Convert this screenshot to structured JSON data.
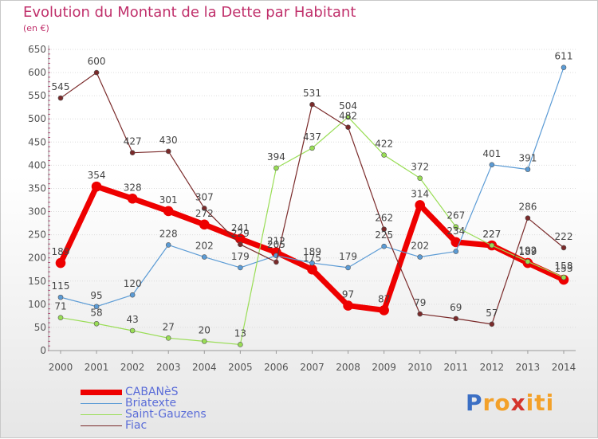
{
  "title": "Evolution du Montant de la Dette par Habitant",
  "subtitle": "(en €)",
  "logo": {
    "letters": [
      "P",
      "r",
      "o",
      "x",
      "i",
      "t",
      "i"
    ],
    "colors": [
      "#3b6fc4",
      "#f3a12a",
      "#f3a12a",
      "#d4342c",
      "#f3a12a",
      "#f3a12a",
      "#f3a12a"
    ]
  },
  "chart_data": {
    "type": "line",
    "x": [
      2000,
      2001,
      2002,
      2003,
      2004,
      2005,
      2006,
      2007,
      2008,
      2009,
      2010,
      2011,
      2012,
      2013,
      2014
    ],
    "ylim": [
      0,
      650
    ],
    "yticks": [
      0,
      50,
      100,
      150,
      200,
      250,
      300,
      350,
      400,
      450,
      500,
      550,
      600,
      650
    ],
    "grid": true,
    "legend": "bottom-left",
    "series": [
      {
        "name": "CABANèS",
        "color": "#ee0000",
        "width": 7,
        "values": [
          189,
          354,
          328,
          301,
          272,
          241,
          212,
          175,
          97,
          87,
          314,
          234,
          227,
          189,
          153
        ],
        "labels": [
          "189",
          "354",
          "328",
          "301",
          "272",
          "241",
          "212",
          "175",
          "97",
          "87",
          "314",
          "234",
          "227",
          "189",
          "153"
        ]
      },
      {
        "name": "Briatexte",
        "color": "#5b9bd5",
        "width": 1.2,
        "values": [
          115,
          95,
          120,
          228,
          202,
          179,
          205,
          189,
          179,
          225,
          202,
          214,
          401,
          391,
          611
        ],
        "labels": [
          "115",
          "95",
          "120",
          "228",
          "202",
          "179",
          "205",
          "189",
          "179",
          "225",
          "202",
          "",
          "401",
          "391",
          "611"
        ]
      },
      {
        "name": "Saint-Gauzens",
        "color": "#99dd55",
        "width": 1.2,
        "values": [
          71,
          58,
          43,
          27,
          20,
          13,
          394,
          437,
          504,
          422,
          372,
          267,
          227,
          192,
          158
        ],
        "labels": [
          "71",
          "58",
          "43",
          "27",
          "20",
          "13",
          "394",
          "437",
          "504",
          "422",
          "372",
          "267",
          "227",
          "192",
          "158"
        ]
      },
      {
        "name": "Fiac",
        "color": "#7a2a2a",
        "width": 1.2,
        "values": [
          545,
          600,
          427,
          430,
          307,
          229,
          191,
          531,
          482,
          262,
          79,
          69,
          57,
          286,
          222
        ],
        "labels": [
          "545",
          "600",
          "427",
          "430",
          "307",
          "229",
          "",
          "531",
          "482",
          "262",
          "79",
          "69",
          "57",
          "286",
          "222"
        ]
      }
    ]
  }
}
